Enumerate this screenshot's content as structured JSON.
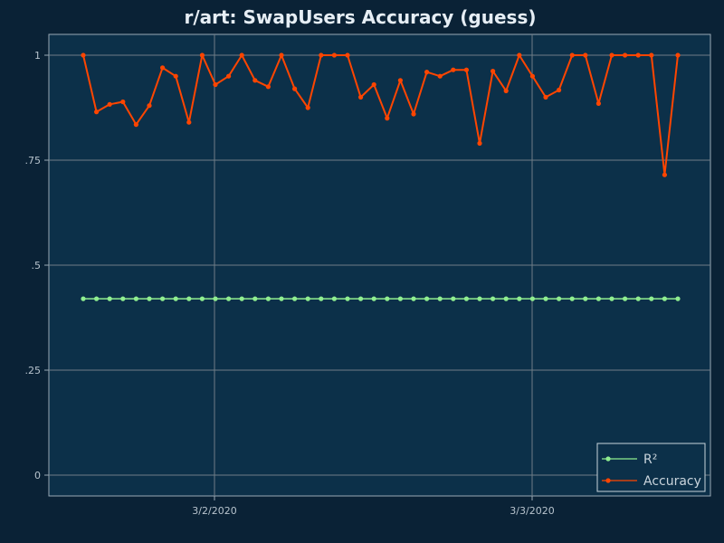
{
  "chart_data": {
    "type": "line",
    "title": "r/art: SwapUsers Accuracy (guess)",
    "xlabel": "",
    "ylabel": "",
    "x_tick_labels": [
      "3/2/2020",
      "3/3/2020"
    ],
    "y_ticks": [
      0,
      0.25,
      0.5,
      0.75,
      1
    ],
    "y_tick_labels": [
      "0",
      ".25",
      ".5",
      ".75",
      "1"
    ],
    "ylim": [
      -0.05,
      1.05
    ],
    "grid": true,
    "legend": "bottom-right",
    "series": [
      {
        "name": "R²",
        "color": "#90ee90",
        "values": [
          0.42,
          0.42,
          0.42,
          0.42,
          0.42,
          0.42,
          0.42,
          0.42,
          0.42,
          0.42,
          0.42,
          0.42,
          0.42,
          0.42,
          0.42,
          0.42,
          0.42,
          0.42,
          0.42,
          0.42,
          0.42,
          0.42,
          0.42,
          0.42,
          0.42,
          0.42,
          0.42,
          0.42,
          0.42,
          0.42,
          0.42,
          0.42,
          0.42,
          0.42,
          0.42,
          0.42,
          0.42,
          0.42,
          0.42,
          0.42,
          0.42,
          0.42,
          0.42,
          0.42,
          0.42,
          0.42
        ]
      },
      {
        "name": "Accuracy",
        "color": "#ff4500",
        "values": [
          1.0,
          0.865,
          0.883,
          0.889,
          0.835,
          0.88,
          0.97,
          0.95,
          0.84,
          1.0,
          0.93,
          0.95,
          1.0,
          0.94,
          0.925,
          1.0,
          0.92,
          0.875,
          1.0,
          1.0,
          1.0,
          0.9,
          0.93,
          0.85,
          0.94,
          0.86,
          0.96,
          0.95,
          0.965,
          0.965,
          0.79,
          0.962,
          0.915,
          1.0,
          0.95,
          0.9,
          0.917,
          1.0,
          1.0,
          0.885,
          1.0,
          1.0,
          1.0,
          1.0,
          0.715,
          1.0
        ]
      }
    ]
  }
}
